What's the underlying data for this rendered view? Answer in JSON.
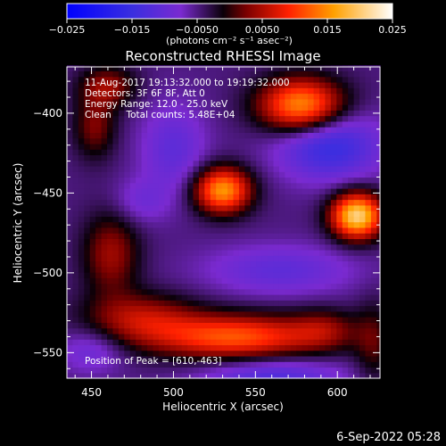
{
  "chart_data": {
    "type": "heatmap",
    "title": "Reconstructed RHESSI Image",
    "xlabel": "Heliocentric X (arcsec)",
    "ylabel": "Heliocentric Y (arcsec)",
    "xlim": [
      435,
      626
    ],
    "ylim": [
      -566,
      -371
    ],
    "x_ticks": [
      450,
      500,
      550,
      600
    ],
    "y_ticks": [
      -550,
      -500,
      -450,
      -400
    ],
    "x_tick_labels": [
      "450",
      "500",
      "550",
      "600"
    ],
    "y_tick_labels": [
      "−550",
      "−500",
      "−450",
      "−400"
    ],
    "colorbar": {
      "range": [
        -0.025,
        0.025
      ],
      "ticks": [
        -0.025,
        -0.015,
        -0.005,
        0.005,
        0.015,
        0.025
      ],
      "tick_labels": [
        "−0.025",
        "−0.015",
        "−0.0050",
        "0.0050",
        "0.015",
        "0.025"
      ],
      "unit_label": "(photons cm⁻² s⁻¹ asec⁻²)"
    },
    "annotations": [
      "11-Aug-2017 19:13:32.000 to 19:19:32.000",
      "Detectors: 3F 6F 8F, Att 0",
      "Energy Range: 12.0 - 25.0 keV",
      "Clean     Total counts: 5.48E+04"
    ],
    "peak_label": "Position of Peak = [610,-463]",
    "sources": [
      {
        "x": 612,
        "y": -464,
        "sx": 11,
        "sy": 10,
        "amp": 0.0255
      },
      {
        "x": 530,
        "y": -448,
        "sx": 12,
        "sy": 10,
        "amp": 0.0205
      },
      {
        "x": 578,
        "y": -395,
        "sx": 18,
        "sy": 12,
        "amp": 0.0205
      },
      {
        "x": 460,
        "y": -383,
        "sx": 12,
        "sy": 9,
        "amp": 0.0085
      },
      {
        "x": 452,
        "y": -408,
        "sx": 9,
        "sy": 14,
        "amp": 0.0075
      },
      {
        "x": 462,
        "y": -488,
        "sx": 12,
        "sy": 18,
        "amp": 0.009
      },
      {
        "x": 538,
        "y": -540,
        "sx": 36,
        "sy": 10,
        "amp": 0.0165
      },
      {
        "x": 592,
        "y": -535,
        "sx": 14,
        "sy": 9,
        "amp": 0.006
      },
      {
        "x": 480,
        "y": -528,
        "sx": 24,
        "sy": 11,
        "amp": 0.0095
      },
      {
        "x": 622,
        "y": -544,
        "sx": 8,
        "sy": 18,
        "amp": 0.0055
      }
    ],
    "negative_regions": [
      {
        "x": 595,
        "y": -420,
        "sx": 22,
        "sy": 15,
        "amp": -0.011
      },
      {
        "x": 500,
        "y": -422,
        "sx": 14,
        "sy": 20,
        "amp": -0.006
      },
      {
        "x": 565,
        "y": -498,
        "sx": 32,
        "sy": 11,
        "amp": -0.006
      },
      {
        "x": 480,
        "y": -455,
        "sx": 12,
        "sy": 10,
        "amp": -0.004
      },
      {
        "x": 560,
        "y": -565,
        "sx": 30,
        "sy": 9,
        "amp": -0.008
      },
      {
        "x": 450,
        "y": -548,
        "sx": 14,
        "sy": 10,
        "amp": -0.005
      }
    ],
    "background_level": -0.0048
  },
  "footer": {
    "timestamp": "6-Sep-2022 05:28"
  }
}
